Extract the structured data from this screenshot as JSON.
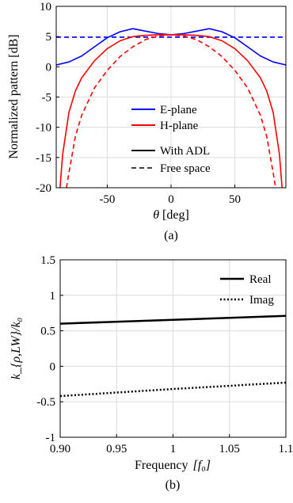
{
  "chart_data": [
    {
      "type": "line",
      "caption": "(a)",
      "xlabel_symbol": "θ",
      "xlabel_unit": "[deg]",
      "ylabel": "Normalized pattern [dB]",
      "xlim": [
        -90,
        90
      ],
      "ylim": [
        -20,
        10
      ],
      "xticks": [
        "-50",
        "0",
        "50"
      ],
      "xtick_values": [
        -50,
        0,
        50
      ],
      "yticks": [
        "10",
        "5",
        "0",
        "-5",
        "-10",
        "-15",
        "-20"
      ],
      "ytick_values": [
        10,
        5,
        0,
        -5,
        -10,
        -15,
        -20
      ],
      "grid": true,
      "legend_placement": "bottom-center",
      "legend": {
        "colors": [
          {
            "label": "E-plane",
            "color": "#0000ff"
          },
          {
            "label": "H-plane",
            "color": "#ff0000"
          }
        ],
        "styles": [
          {
            "label": "With ADL",
            "dash": "solid"
          },
          {
            "label": "Free space",
            "dash": "dashed"
          }
        ]
      },
      "series": [
        {
          "color": "#0000ff",
          "dash": "solid",
          "x": [
            -90,
            -80,
            -70,
            -60,
            -50,
            -40,
            -30,
            -20,
            -10,
            0,
            10,
            20,
            30,
            40,
            50,
            60,
            70,
            80,
            90
          ],
          "y": [
            0.3,
            0.8,
            1.8,
            3.3,
            4.8,
            5.8,
            6.3,
            5.9,
            5.5,
            5.3,
            5.5,
            5.9,
            6.3,
            5.8,
            4.8,
            3.3,
            1.8,
            0.8,
            0.3
          ]
        },
        {
          "color": "#0000ff",
          "dash": "dashed",
          "x": [
            -90,
            90
          ],
          "y": [
            4.9,
            4.9
          ]
        },
        {
          "color": "#ff0000",
          "dash": "solid",
          "x": [
            -87,
            -85,
            -80,
            -75,
            -70,
            -60,
            -50,
            -40,
            -30,
            -20,
            -10,
            0,
            10,
            20,
            30,
            40,
            50,
            60,
            70,
            75,
            80,
            85,
            87
          ],
          "y": [
            -20,
            -14.5,
            -7.5,
            -4.0,
            -1.8,
            1.0,
            3.0,
            4.3,
            5.0,
            5.2,
            5.3,
            5.3,
            5.3,
            5.2,
            5.0,
            4.3,
            3.0,
            1.0,
            -1.8,
            -4.0,
            -7.5,
            -14.5,
            -20
          ]
        },
        {
          "color": "#ff0000",
          "dash": "dashed",
          "x": [
            -82,
            -80,
            -75,
            -70,
            -60,
            -50,
            -40,
            -30,
            -20,
            -10,
            0,
            10,
            20,
            30,
            40,
            50,
            60,
            70,
            75,
            80,
            82
          ],
          "y": [
            -20,
            -17.5,
            -11.5,
            -8.0,
            -3.5,
            -0.6,
            1.7,
            3.3,
            4.5,
            5.1,
            5.3,
            5.1,
            4.5,
            3.3,
            1.7,
            -0.6,
            -3.5,
            -8.0,
            -11.5,
            -17.5,
            -20
          ]
        }
      ]
    },
    {
      "type": "line",
      "caption": "(b)",
      "xlabel": "Frequency",
      "xlabel_unit": "[f₀]",
      "ylabel": "k_{ρ,LW}/k₀",
      "xlim": [
        0.9,
        1.1
      ],
      "ylim": [
        -1,
        1.5
      ],
      "xticks": [
        "0.90",
        "0.95",
        "1",
        "1.05",
        "1.1"
      ],
      "xtick_values": [
        0.9,
        0.95,
        1.0,
        1.05,
        1.1
      ],
      "yticks": [
        "1.5",
        "1",
        "0.5",
        "0",
        "-0.5",
        "-1"
      ],
      "ytick_values": [
        1.5,
        1,
        0.5,
        0,
        -0.5,
        -1
      ],
      "grid": true,
      "legend_placement": "top-right",
      "series": [
        {
          "name": "Real",
          "color": "#000000",
          "dash": "solid",
          "x": [
            0.9,
            1.0,
            1.1
          ],
          "y": [
            0.6,
            0.655,
            0.71
          ]
        },
        {
          "name": "Imag",
          "color": "#000000",
          "dash": "dotted",
          "x": [
            0.9,
            1.0,
            1.1
          ],
          "y": [
            -0.42,
            -0.32,
            -0.23
          ]
        }
      ]
    }
  ]
}
